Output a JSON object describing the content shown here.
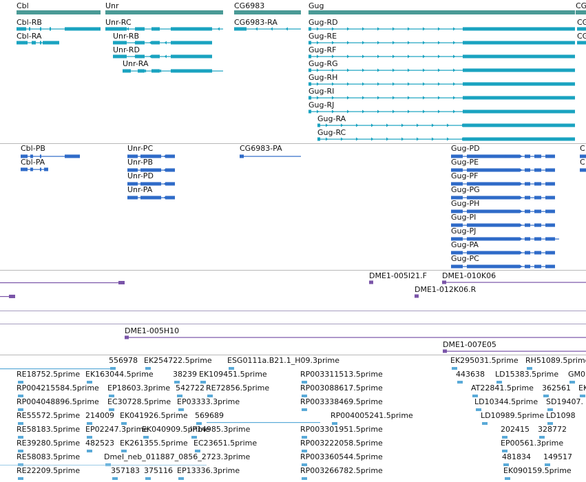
{
  "colors": {
    "gene": "#4a9a96",
    "transcript1": "#1aa3c0",
    "transcript2": "#2f6bc8",
    "clone": "#7a54a8",
    "est": "#5aaad8",
    "separator": "#b8b8b8"
  },
  "genes": [
    {
      "id": "cbl",
      "label": "Cbl"
    },
    {
      "id": "unr",
      "label": "Unr"
    },
    {
      "id": "cg6983",
      "label": "CG6983"
    },
    {
      "id": "gug",
      "label": "Gug"
    },
    {
      "id": "cg-edge",
      "label": "CG"
    }
  ],
  "transcripts1": [
    {
      "id": "cbl-rb",
      "label": "Cbl-RB"
    },
    {
      "id": "cbl-ra",
      "label": "Cbl-RA"
    },
    {
      "id": "unr-rc",
      "label": "Unr-RC"
    },
    {
      "id": "unr-rb",
      "label": "Unr-RB"
    },
    {
      "id": "unr-rd",
      "label": "Unr-RD"
    },
    {
      "id": "unr-ra",
      "label": "Unr-RA"
    },
    {
      "id": "cg6983-ra",
      "label": "CG6983-RA"
    },
    {
      "id": "gug-rd",
      "label": "Gug-RD"
    },
    {
      "id": "gug-re",
      "label": "Gug-RE"
    },
    {
      "id": "gug-rf",
      "label": "Gug-RF"
    },
    {
      "id": "gug-rg",
      "label": "Gug-RG"
    },
    {
      "id": "gug-rh",
      "label": "Gug-RH"
    },
    {
      "id": "gug-ri",
      "label": "Gug-RI"
    },
    {
      "id": "gug-rj",
      "label": "Gug-RJ"
    },
    {
      "id": "gug-ra",
      "label": "Gug-RA"
    },
    {
      "id": "gug-rc",
      "label": "Gug-RC"
    },
    {
      "id": "cg-edge-1",
      "label": "CG"
    },
    {
      "id": "cg-edge-2",
      "label": "CG"
    }
  ],
  "transcripts2": [
    {
      "id": "cbl-pb",
      "label": "Cbl-PB"
    },
    {
      "id": "cbl-pa",
      "label": "Cbl-PA"
    },
    {
      "id": "unr-pc",
      "label": "Unr-PC"
    },
    {
      "id": "unr-pb",
      "label": "Unr-PB"
    },
    {
      "id": "unr-pd",
      "label": "Unr-PD"
    },
    {
      "id": "unr-pa",
      "label": "Unr-PA"
    },
    {
      "id": "cg6983-pa",
      "label": "CG6983-PA"
    },
    {
      "id": "gug-pd",
      "label": "Gug-PD"
    },
    {
      "id": "gug-pe",
      "label": "Gug-PE"
    },
    {
      "id": "gug-pf",
      "label": "Gug-PF"
    },
    {
      "id": "gug-pg",
      "label": "Gug-PG"
    },
    {
      "id": "gug-ph",
      "label": "Gug-PH"
    },
    {
      "id": "gug-pi",
      "label": "Gug-PI"
    },
    {
      "id": "gug-pj",
      "label": "Gug-PJ"
    },
    {
      "id": "gug-pa",
      "label": "Gug-PA"
    },
    {
      "id": "gug-pc",
      "label": "Gug-PC"
    },
    {
      "id": "c-edge-1",
      "label": "C"
    },
    {
      "id": "c-edge-2",
      "label": "C"
    }
  ],
  "clones": [
    {
      "id": "dme1-005i21",
      "label": "DME1-005I21.F"
    },
    {
      "id": "dme1-010k06",
      "label": "DME1-010K06"
    },
    {
      "id": "dme1-012k06",
      "label": "DME1-012K06.R"
    },
    {
      "id": "dme1-005h10",
      "label": "DME1-005H10"
    },
    {
      "id": "dme1-007e05",
      "label": "DME1-007E05"
    }
  ],
  "ests": [
    "556978",
    "EK254722.5prime",
    "ESG0111a.B21.1_H09.3prime",
    "EK295031.5prime",
    "RH51089.5prime",
    "RE18752.5prime",
    "EK163044.5prime",
    "38239",
    "EK109451.5prime",
    "RP003311513.5prime",
    "443638",
    "LD15383.5prime",
    "GM0",
    "RP004215584.5prime",
    "EP18603.3prime",
    "542722",
    "RE72856.5prime",
    "RP003088617.5prime",
    "AT22841.5prime",
    "362561",
    "EK",
    "RP004048896.5prime",
    "EC30728.5prime",
    "EP03333.3prime",
    "RP003338469.5prime",
    "LD10344.5prime",
    "SD19407.",
    "RE55572.5prime",
    "214009",
    "EK041926.5prime",
    "569689",
    "RP004005241.5prime",
    "LD10989.5prime",
    "LD1098",
    "RE58183.5prime",
    "EP02247.3prime",
    "EK040909.5prime",
    "IP14985.3prime",
    "RP003301951.5prime",
    "202415",
    "328772",
    "RE39280.5prime",
    "482523",
    "EK261355.5prime",
    "EC23651.5prime",
    "RP003222058.5prime",
    "EP00561.3prime",
    "RE58083.5prime",
    "Dmel_neb_011887_0856_2723.3prime",
    "RP003360544.5prime",
    "481834",
    "149517",
    "RE22209.5prime",
    "357183",
    "375116",
    "EP13336.3prime",
    "RP003266782.5prime",
    "EK090159.5prime"
  ]
}
